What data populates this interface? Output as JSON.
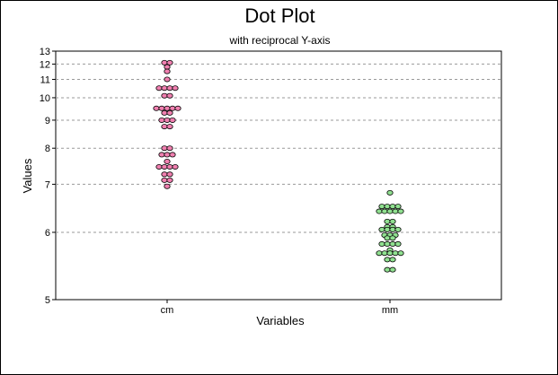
{
  "chart_data": {
    "type": "scatter",
    "title": "Dot Plot",
    "subtitle": "with reciprocal Y-axis",
    "xlabel": "Variables",
    "ylabel": "Values",
    "y_scale": "reciprocal",
    "ylim": [
      5,
      13
    ],
    "yticks": [
      5,
      6,
      7,
      8,
      9,
      10,
      11,
      12,
      13
    ],
    "ytick_labels": [
      "5",
      "6",
      "7",
      "8",
      "9",
      "10",
      "11",
      "12",
      "13"
    ],
    "grid": "horizontal dashed",
    "categories": [
      "cm",
      "mm"
    ],
    "series": [
      {
        "color": "#f080b0",
        "values": [
          12.1,
          12.1,
          11.8,
          11.5,
          11.0,
          10.5,
          10.5,
          10.5,
          10.5,
          10.1,
          10.1,
          9.5,
          9.5,
          9.5,
          9.5,
          9.5,
          9.3,
          9.3,
          9.0,
          9.0,
          9.0,
          8.75,
          8.75,
          8.0,
          8.0,
          7.8,
          7.8,
          7.8,
          7.6,
          7.45,
          7.45,
          7.45,
          7.45,
          7.25,
          7.25,
          7.1,
          7.1,
          6.95
        ]
      },
      {
        "color": "#90e090",
        "values": [
          6.8,
          6.5,
          6.5,
          6.5,
          6.5,
          6.4,
          6.4,
          6.4,
          6.4,
          6.4,
          6.2,
          6.2,
          6.1,
          6.1,
          6.05,
          6.05,
          6.05,
          6.05,
          5.95,
          5.95,
          5.95,
          5.9,
          5.9,
          5.8,
          5.8,
          5.8,
          5.8,
          5.7,
          5.65,
          5.65,
          5.65,
          5.65,
          5.65,
          5.55,
          5.55,
          5.4,
          5.4
        ]
      }
    ]
  }
}
